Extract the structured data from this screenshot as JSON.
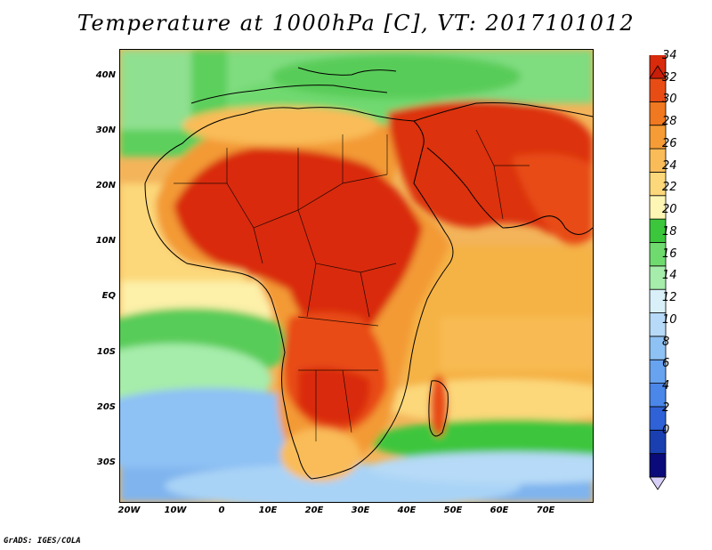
{
  "title": "Temperature at 1000hPa [C], VT: 2017101012",
  "credit": "GrADS: IGES/COLA",
  "lat_labels": [
    "40N",
    "30N",
    "20N",
    "10N",
    "EQ",
    "10S",
    "20S",
    "30S"
  ],
  "lon_labels": [
    "20W",
    "10W",
    "0",
    "10E",
    "20E",
    "30E",
    "40E",
    "50E",
    "60E",
    "70E"
  ],
  "colorbar": {
    "labels": [
      "34",
      "32",
      "30",
      "28",
      "26",
      "24",
      "22",
      "20",
      "18",
      "16",
      "14",
      "12",
      "10",
      "8",
      "6",
      "4",
      "2",
      "0"
    ],
    "colors": [
      "#0a0a7a",
      "#1a3fb0",
      "#2f62d6",
      "#4a87e8",
      "#68a3ef",
      "#8ec1f4",
      "#b6daf7",
      "#d9f0f8",
      "#a6ecaa",
      "#6fdb6f",
      "#3cc63c",
      "#fdf6b4",
      "#fcd87a",
      "#f9bc58",
      "#f59c36",
      "#ef7820",
      "#e84c15",
      "#d92a0c",
      "#c81d08"
    ]
  },
  "map": {
    "extent": {
      "lon_min": -22,
      "lon_max": 80,
      "lat_min": -37,
      "lat_max": 45
    },
    "field": "temperature_1000hPa",
    "units": "C"
  }
}
